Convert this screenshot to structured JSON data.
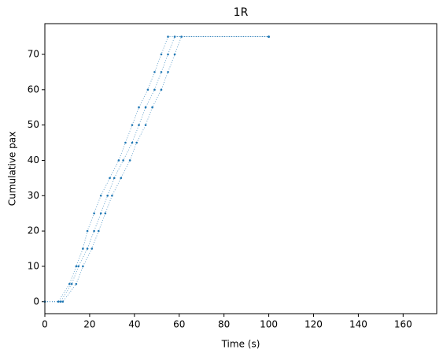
{
  "chart_data": {
    "type": "scatter",
    "title": "1R",
    "x_label": "Time (s)",
    "y_label": "Cumulative pax",
    "xlim": [
      0,
      175
    ],
    "ylim": [
      -3.4,
      78.7
    ],
    "xticks": [
      0,
      20,
      40,
      60,
      80,
      100,
      120,
      140,
      160
    ],
    "yticks": [
      0,
      10,
      20,
      30,
      40,
      50,
      60,
      70
    ],
    "series": [
      {
        "color": "#1f77b4",
        "x": [
          0,
          6,
          11,
          14,
          17,
          19,
          22,
          25,
          29,
          33,
          36,
          39,
          42,
          46,
          49,
          52,
          55,
          100
        ],
        "values": [
          0,
          0,
          5,
          10,
          15,
          20,
          25,
          30,
          35,
          40,
          45,
          50,
          55,
          60,
          65,
          70,
          75,
          75
        ]
      },
      {
        "color": "#1f77b4",
        "x": [
          0,
          7,
          12,
          15,
          19,
          22,
          25,
          28,
          31,
          35,
          39,
          42,
          45,
          49,
          52,
          55,
          58,
          100
        ],
        "values": [
          0,
          0,
          5,
          10,
          15,
          20,
          25,
          30,
          35,
          40,
          45,
          50,
          55,
          60,
          65,
          70,
          75,
          75
        ]
      },
      {
        "color": "#1f77b4",
        "x": [
          0,
          8,
          14,
          17,
          21,
          24,
          27,
          30,
          34,
          38,
          41,
          45,
          48,
          52,
          55,
          58,
          61,
          100
        ],
        "values": [
          0,
          0,
          5,
          10,
          15,
          20,
          25,
          30,
          35,
          40,
          45,
          50,
          55,
          60,
          65,
          70,
          75,
          75
        ]
      }
    ]
  }
}
